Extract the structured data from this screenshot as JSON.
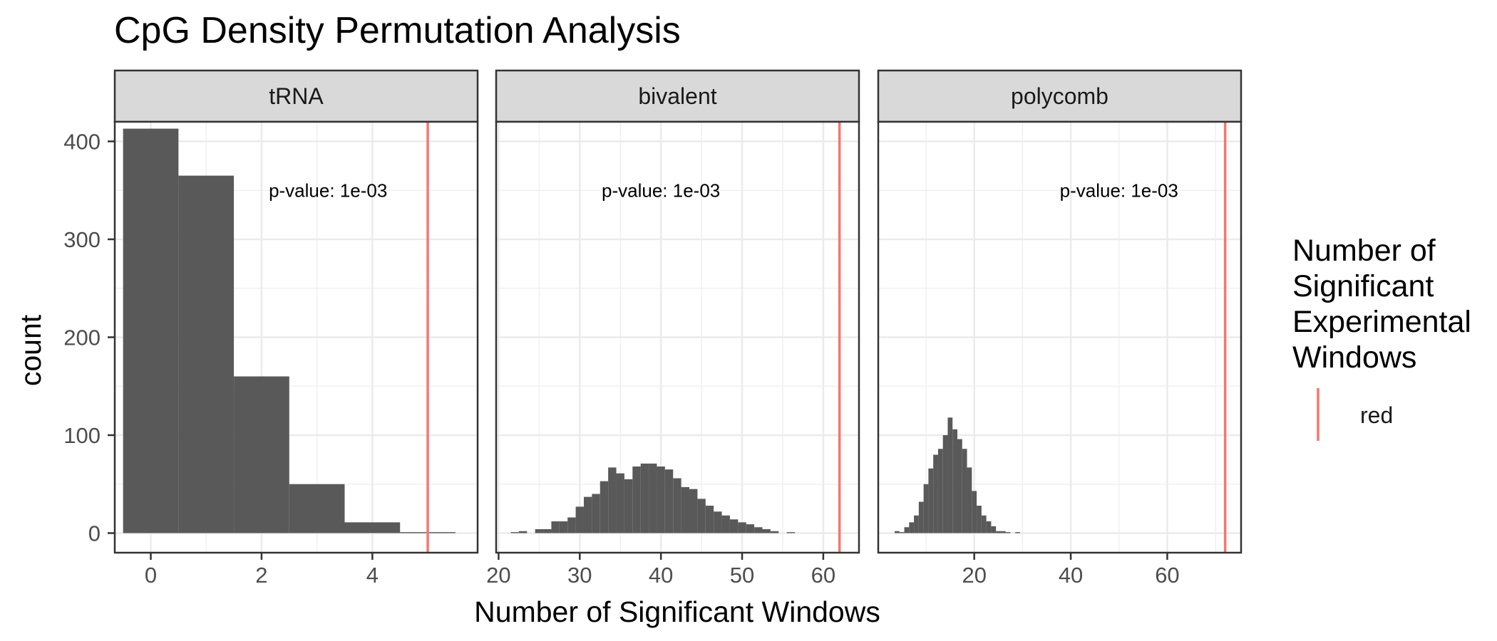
{
  "chart_data": {
    "type": "bar",
    "title": "CpG Density Permutation Analysis",
    "xlabel": "Number of Significant Windows",
    "ylabel": "count",
    "y_range": [
      -20,
      420
    ],
    "y_ticks": [
      0,
      100,
      200,
      300,
      400
    ],
    "grid": true,
    "legend": {
      "title_lines": [
        "Number of",
        "Significant",
        "Experimental",
        "Windows"
      ],
      "entries": [
        {
          "label": "red",
          "color": "#F8766D"
        }
      ],
      "position": "right"
    },
    "bar_color": "#595959",
    "vline_color": "#F8766D",
    "strip_fill": "#d9d9d9",
    "panels": [
      {
        "label": "tRNA",
        "x_range": [
          -0.65,
          5.9
        ],
        "x_ticks": [
          0,
          2,
          4
        ],
        "annotation": "p-value: 1e-03",
        "annotation_x": 3.2,
        "annotation_y": 350,
        "observed": 5,
        "bin_width": 1,
        "bins": [
          {
            "x": 0,
            "count": 413
          },
          {
            "x": 1,
            "count": 365
          },
          {
            "x": 2,
            "count": 160
          },
          {
            "x": 3,
            "count": 50
          },
          {
            "x": 4,
            "count": 11
          },
          {
            "x": 5,
            "count": 1
          }
        ]
      },
      {
        "label": "bivalent",
        "x_range": [
          19.7,
          64.4
        ],
        "x_ticks": [
          20,
          30,
          40,
          50,
          60
        ],
        "annotation": "p-value: 1e-03",
        "annotation_x": 40,
        "annotation_y": 350,
        "observed": 62,
        "bin_width": 1,
        "bins": [
          {
            "x": 22,
            "count": 1
          },
          {
            "x": 23,
            "count": 2
          },
          {
            "x": 25,
            "count": 4
          },
          {
            "x": 26,
            "count": 4
          },
          {
            "x": 27,
            "count": 12
          },
          {
            "x": 28,
            "count": 12
          },
          {
            "x": 29,
            "count": 16
          },
          {
            "x": 30,
            "count": 27
          },
          {
            "x": 31,
            "count": 37
          },
          {
            "x": 32,
            "count": 40
          },
          {
            "x": 33,
            "count": 53
          },
          {
            "x": 34,
            "count": 67
          },
          {
            "x": 35,
            "count": 61
          },
          {
            "x": 36,
            "count": 55
          },
          {
            "x": 37,
            "count": 68
          },
          {
            "x": 38,
            "count": 71
          },
          {
            "x": 39,
            "count": 71
          },
          {
            "x": 40,
            "count": 68
          },
          {
            "x": 41,
            "count": 65
          },
          {
            "x": 42,
            "count": 56
          },
          {
            "x": 43,
            "count": 47
          },
          {
            "x": 44,
            "count": 45
          },
          {
            "x": 45,
            "count": 35
          },
          {
            "x": 46,
            "count": 28
          },
          {
            "x": 47,
            "count": 22
          },
          {
            "x": 48,
            "count": 18
          },
          {
            "x": 49,
            "count": 14
          },
          {
            "x": 50,
            "count": 11
          },
          {
            "x": 51,
            "count": 9
          },
          {
            "x": 52,
            "count": 6
          },
          {
            "x": 53,
            "count": 4
          },
          {
            "x": 54,
            "count": 2
          },
          {
            "x": 56,
            "count": 1
          }
        ]
      },
      {
        "label": "polycomb",
        "x_range": [
          0.1,
          75.3
        ],
        "x_ticks": [
          20,
          40,
          60
        ],
        "annotation": "p-value: 1e-03",
        "annotation_x": 50,
        "annotation_y": 350,
        "observed": 72,
        "bin_width": 1,
        "bins": [
          {
            "x": 4,
            "count": 2
          },
          {
            "x": 5,
            "count": 1
          },
          {
            "x": 6,
            "count": 6
          },
          {
            "x": 7,
            "count": 11
          },
          {
            "x": 8,
            "count": 18
          },
          {
            "x": 9,
            "count": 32
          },
          {
            "x": 10,
            "count": 50
          },
          {
            "x": 11,
            "count": 66
          },
          {
            "x": 12,
            "count": 80
          },
          {
            "x": 13,
            "count": 86
          },
          {
            "x": 14,
            "count": 100
          },
          {
            "x": 15,
            "count": 118
          },
          {
            "x": 16,
            "count": 106
          },
          {
            "x": 17,
            "count": 96
          },
          {
            "x": 18,
            "count": 86
          },
          {
            "x": 19,
            "count": 67
          },
          {
            "x": 20,
            "count": 43
          },
          {
            "x": 21,
            "count": 28
          },
          {
            "x": 22,
            "count": 18
          },
          {
            "x": 23,
            "count": 12
          },
          {
            "x": 24,
            "count": 7
          },
          {
            "x": 25,
            "count": 2
          },
          {
            "x": 26,
            "count": 2
          },
          {
            "x": 27,
            "count": 1
          },
          {
            "x": 29,
            "count": 1
          }
        ]
      }
    ]
  }
}
